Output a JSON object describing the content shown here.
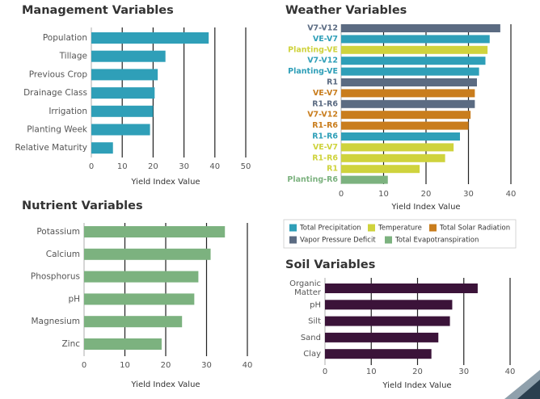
{
  "colors": {
    "teal": "#2f9fb8",
    "green": "#7cb27f",
    "purple": "#3b1339",
    "yellow": "#cfd33d",
    "orange": "#c97d1d",
    "slate": "#5b6b82",
    "text": "#555555",
    "title": "#333333",
    "grid": "#222222",
    "corner_dark": "#2b3f4f",
    "corner_light": "#8fa0ac"
  },
  "chart_data": [
    {
      "id": "management",
      "type": "bar",
      "orientation": "horizontal",
      "title": "Management Variables",
      "xlabel": "Yield Index Value",
      "xlim": [
        0,
        50
      ],
      "ticks": [
        0,
        10,
        20,
        30,
        40,
        50
      ],
      "categories": [
        "Population",
        "Tillage",
        "Previous Crop",
        "Drainage Class",
        "Irrigation",
        "Planting Week",
        "Relative Maturity"
      ],
      "values": [
        38,
        24,
        21.5,
        20.5,
        20,
        19,
        7
      ],
      "colorKey": "teal",
      "legend": [],
      "series": []
    },
    {
      "id": "weather",
      "type": "bar",
      "orientation": "horizontal",
      "title": "Weather Variables",
      "xlabel": "Yield Index Value",
      "xlim": [
        0,
        40
      ],
      "ticks": [
        0,
        10,
        20,
        30,
        40
      ],
      "categories": [
        "V7-V12",
        "VE-V7",
        "Planting-VE",
        "V7-V12",
        "Planting-VE",
        "R1",
        "VE-V7",
        "R1-R6",
        "V7-V12",
        "R1-R6",
        "R1-R6",
        "VE-V7",
        "R1-R6",
        "R1",
        "Planting-R6"
      ],
      "values": [
        37.5,
        35,
        34.5,
        34,
        32.5,
        32,
        31.5,
        31.5,
        30.5,
        30,
        28,
        26.5,
        24.5,
        18.5,
        11
      ],
      "series": [
        "Vapor Pressure Deficit",
        "Total Precipitation",
        "Temperature",
        "Total Precipitation",
        "Total Precipitation",
        "Vapor Pressure Deficit",
        "Total Solar Radiation",
        "Vapor Pressure Deficit",
        "Total Solar Radiation",
        "Total Solar Radiation",
        "Total Precipitation",
        "Temperature",
        "Temperature",
        "Temperature",
        "Total Evapotranspiration"
      ],
      "legend": [
        {
          "name": "Total Precipitation",
          "colorKey": "teal"
        },
        {
          "name": "Temperature",
          "colorKey": "yellow"
        },
        {
          "name": "Total Solar Radiation",
          "colorKey": "orange"
        },
        {
          "name": "Vapor Pressure Deficit",
          "colorKey": "slate"
        },
        {
          "name": "Total Evapotranspiration",
          "colorKey": "green"
        }
      ]
    },
    {
      "id": "nutrient",
      "type": "bar",
      "orientation": "horizontal",
      "title": "Nutrient Variables",
      "xlabel": "Yield Index Value",
      "xlim": [
        0,
        40
      ],
      "ticks": [
        0,
        10,
        20,
        30,
        40
      ],
      "categories": [
        "Potassium",
        "Calcium",
        "Phosphorus",
        "pH",
        "Magnesium",
        "Zinc"
      ],
      "values": [
        34.5,
        31,
        28,
        27,
        24,
        19
      ],
      "colorKey": "green",
      "legend": [],
      "series": []
    },
    {
      "id": "soil",
      "type": "bar",
      "orientation": "horizontal",
      "title": "Soil Variables",
      "xlabel": "Yield Index Value",
      "xlim": [
        0,
        40
      ],
      "ticks": [
        0,
        10,
        20,
        30,
        40
      ],
      "categories": [
        "Organic Matter",
        "pH",
        "Silt",
        "Sand",
        "Clay"
      ],
      "values": [
        33,
        27.5,
        27,
        24.5,
        23
      ],
      "colorKey": "purple",
      "legend": [],
      "series": []
    }
  ]
}
